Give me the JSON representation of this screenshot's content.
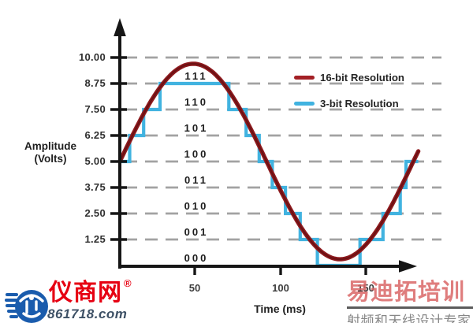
{
  "chart_data": {
    "type": "line",
    "description": "Analog sine wave versus 3-bit quantized staircase (ADC resolution comparison)",
    "ylabel": [
      "Amplitude",
      "(Volts)"
    ],
    "xlabel": "Time (ms)",
    "y_ticks": [
      {
        "label": "10.00",
        "volts": 10
      },
      {
        "label": "8.75",
        "volts": 8.75
      },
      {
        "label": "7.50",
        "volts": 7.5
      },
      {
        "label": "6.25",
        "volts": 6.25
      },
      {
        "label": "5.00",
        "volts": 5
      },
      {
        "label": "3.75",
        "volts": 3.75
      },
      {
        "label": "2.50",
        "volts": 2.5
      },
      {
        "label": "1.25",
        "volts": 1.25
      }
    ],
    "x_ticks": [
      {
        "label": "50",
        "ms": 50
      },
      {
        "label": "100",
        "ms": 100
      },
      {
        "label": "150",
        "ms": 150
      }
    ],
    "ylim_volts": [
      0,
      11
    ],
    "xlim_ms": [
      0,
      189
    ],
    "grid": "dashed-horizontal",
    "binary_codes": [
      {
        "label": "111",
        "band_low_volts": 8.75
      },
      {
        "label": "110",
        "band_low_volts": 7.5
      },
      {
        "label": "101",
        "band_low_volts": 6.25
      },
      {
        "label": "100",
        "band_low_volts": 5
      },
      {
        "label": "011",
        "band_low_volts": 3.75
      },
      {
        "label": "010",
        "band_low_volts": 2.5
      },
      {
        "label": "001",
        "band_low_volts": 1.25
      },
      {
        "label": "000",
        "band_low_volts": 0
      }
    ],
    "series": [
      {
        "name": "16-bit Resolution",
        "color": "#8f1b1f",
        "style": "smooth-sine",
        "offset_volts": 5,
        "amplitude_volts": 4.7,
        "period_ms": 179,
        "t_start_ms": 0,
        "t_end_ms": 182
      },
      {
        "name": "3-bit Resolution",
        "color": "#41b3e0",
        "style": "staircase",
        "quantization_step_volts": 1.25,
        "steps": [
          {
            "t0": 0,
            "t1": 6,
            "volts": 5
          },
          {
            "t0": 6,
            "t1": 14.5,
            "volts": 6.25
          },
          {
            "t0": 14.5,
            "t1": 24.5,
            "volts": 7.5
          },
          {
            "t0": 24.5,
            "t1": 66.5,
            "volts": 8.75
          },
          {
            "t0": 66.5,
            "t1": 77,
            "volts": 7.5
          },
          {
            "t0": 77,
            "t1": 85,
            "volts": 6.25
          },
          {
            "t0": 85,
            "t1": 93,
            "volts": 5
          },
          {
            "t0": 93,
            "t1": 101,
            "volts": 3.75
          },
          {
            "t0": 101,
            "t1": 110,
            "volts": 2.5
          },
          {
            "t0": 110,
            "t1": 120.5,
            "volts": 1.25
          },
          {
            "t0": 120.5,
            "t1": 146.5,
            "volts": 0
          },
          {
            "t0": 146.5,
            "t1": 160.5,
            "volts": 1.25
          },
          {
            "t0": 160.5,
            "t1": 171,
            "volts": 2.5
          },
          {
            "t0": 171,
            "t1": 174.5,
            "volts": 3.75
          },
          {
            "t0": 174.5,
            "t1": 182,
            "volts": 5
          }
        ]
      }
    ],
    "legend": {
      "position": "upper-right",
      "items": [
        {
          "label": "16-bit Resolution",
          "color": "#a32025"
        },
        {
          "label": "3-bit Resolution",
          "color": "#41b3e0"
        }
      ]
    }
  },
  "watermarks": {
    "left": {
      "brand": "仪商网",
      "registered_mark": "®",
      "domain": "861718.com",
      "logo_color": "#1a5cad",
      "brand_color": "#e60012",
      "domain_color": "#3e5166"
    },
    "right": {
      "title": "易迪拓培训",
      "subtitle": "射频和天线设计专家",
      "title_color": "rgba(217,102,102,0.85)",
      "subtitle_color": "#878787"
    }
  }
}
